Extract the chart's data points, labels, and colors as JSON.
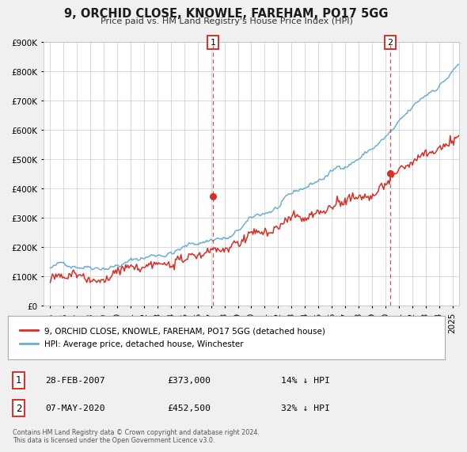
{
  "title": "9, ORCHID CLOSE, KNOWLE, FAREHAM, PO17 5GG",
  "subtitle": "Price paid vs. HM Land Registry's House Price Index (HPI)",
  "ylim": [
    0,
    900000
  ],
  "yticks": [
    0,
    100000,
    200000,
    300000,
    400000,
    500000,
    600000,
    700000,
    800000,
    900000
  ],
  "ytick_labels": [
    "£0",
    "£100K",
    "£200K",
    "£300K",
    "£400K",
    "£500K",
    "£600K",
    "£700K",
    "£800K",
    "£900K"
  ],
  "hpi_color": "#6baed6",
  "price_color": "#d73027",
  "background_color": "#f0f0f0",
  "plot_bg_color": "#ffffff",
  "legend_label_price": "9, ORCHID CLOSE, KNOWLE, FAREHAM, PO17 5GG (detached house)",
  "legend_label_hpi": "HPI: Average price, detached house, Winchester",
  "sale1_date": "28-FEB-2007",
  "sale1_price": "£373,000",
  "sale1_hpi": "14% ↓ HPI",
  "sale1_x": 2007.16,
  "sale1_y": 373000,
  "sale2_date": "07-MAY-2020",
  "sale2_price": "£452,500",
  "sale2_hpi": "32% ↓ HPI",
  "sale2_x": 2020.36,
  "sale2_y": 452500,
  "footer": "Contains HM Land Registry data © Crown copyright and database right 2024.\nThis data is licensed under the Open Government Licence v3.0.",
  "xmin": 1994.5,
  "xmax": 2025.5
}
